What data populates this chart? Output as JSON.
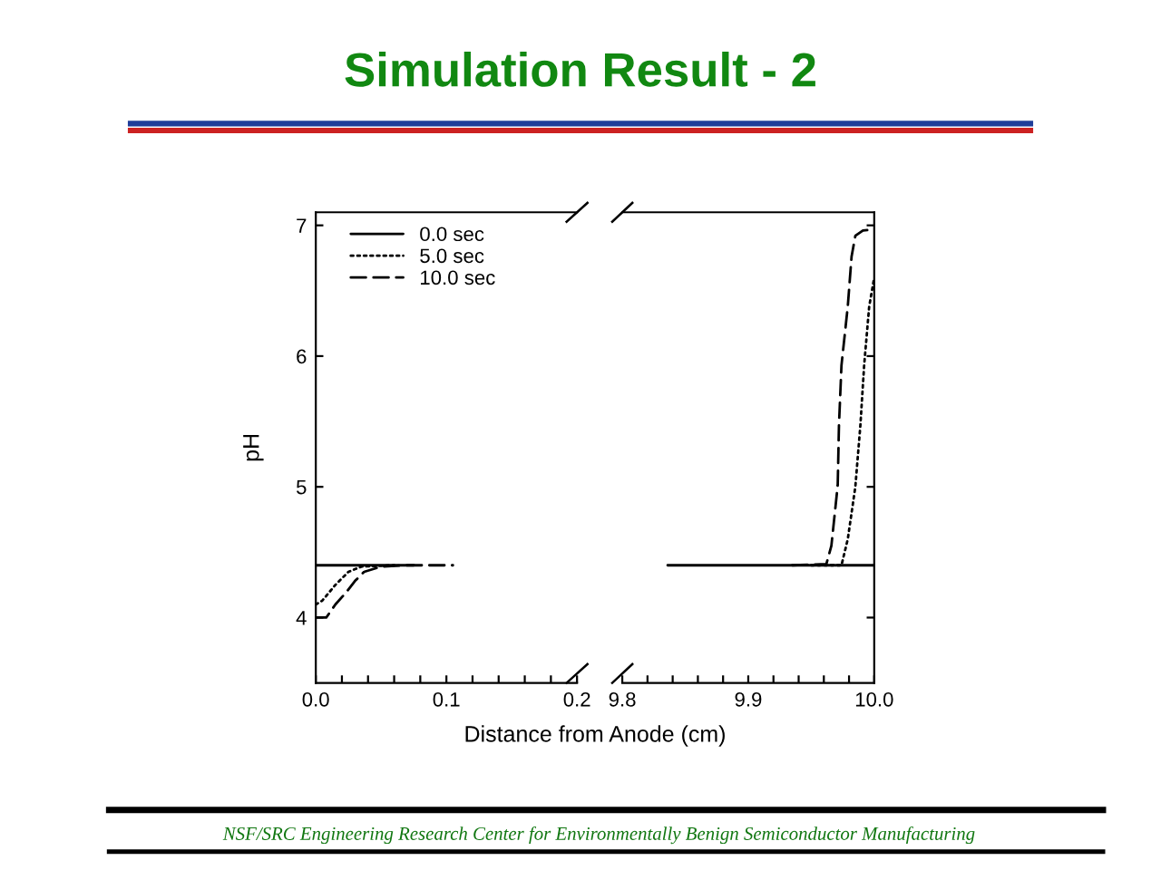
{
  "chart_data": [
    {
      "type": "line",
      "title": "Simulation Result - 2",
      "xlabel": "Distance from Anode (cm)",
      "ylabel": "pH",
      "xlim": [
        0,
        0.2
      ],
      "ylim": [
        3.5,
        7.1
      ],
      "xticks": [
        {
          "value": 0,
          "label": "0.0"
        },
        {
          "value": 0.02,
          "label": null
        },
        {
          "value": 0.04,
          "label": null
        },
        {
          "value": 0.06,
          "label": null
        },
        {
          "value": 0.08,
          "label": null
        },
        0.1,
        {
          "value": 0.12,
          "label": null
        },
        {
          "value": 0.14,
          "label": null
        },
        {
          "value": 0.16,
          "label": null
        },
        {
          "value": 0.18,
          "label": null
        },
        0.2
      ],
      "yticks": [
        4,
        5,
        6,
        7
      ],
      "legend": "top left",
      "annotations": [
        "NSF/SRC Engineering Research Center for Environmentally Benign Semiconductor Manufacturing"
      ],
      "series": [
        {
          "name": "0.0 sec",
          "color": "#000000",
          "line_style": "solid",
          "x": [
            0,
            0.075
          ],
          "values": [
            4.4,
            4.4
          ]
        },
        {
          "name": "5.0 sec",
          "color": "#000000",
          "line_style": "dotted",
          "x": [
            0,
            0.005,
            0.015,
            0.025,
            0.035,
            0.06
          ],
          "values": [
            4.1,
            4.13,
            4.25,
            4.35,
            4.39,
            4.4
          ]
        },
        {
          "name": "10.0 sec",
          "color": "#000000",
          "line_style": "dashed",
          "x": [
            0,
            0.008,
            0.015,
            0.023,
            0.03,
            0.037,
            0.05,
            0.07,
            0.105
          ],
          "values": [
            4.0,
            4.0,
            4.1,
            4.19,
            4.28,
            4.35,
            4.39,
            4.4,
            4.4
          ]
        }
      ]
    },
    {
      "type": "line",
      "xlim": [
        9.8,
        10.0
      ],
      "ylim": [
        3.5,
        7.1
      ],
      "tick_labels": "x",
      "xticks": [
        9.8,
        {
          "value": 9.82,
          "label": null
        },
        {
          "value": 9.84,
          "label": null
        },
        {
          "value": 9.86,
          "label": null
        },
        {
          "value": 9.88,
          "label": null
        },
        9.9,
        {
          "value": 9.92,
          "label": null
        },
        {
          "value": 9.94,
          "label": null
        },
        {
          "value": 9.96,
          "label": null
        },
        {
          "value": 9.98,
          "label": null
        },
        {
          "value": 10,
          "label": "10.0"
        }
      ],
      "yticks": [
        4,
        5,
        6,
        7
      ],
      "series": [
        {
          "color": "#000000",
          "line_style": "solid",
          "x": [
            9.836,
            10.0
          ],
          "values": [
            4.4,
            4.4
          ]
        },
        {
          "color": "#000000",
          "line_style": "dotted",
          "x": [
            9.95,
            9.974,
            9.979,
            9.985,
            9.989,
            9.992,
            9.996,
            10.0
          ],
          "values": [
            4.4,
            4.4,
            4.6,
            5.0,
            5.47,
            5.93,
            6.38,
            6.6
          ]
        },
        {
          "color": "#000000",
          "line_style": "dashed",
          "x": [
            9.935,
            9.962,
            9.966,
            9.971,
            9.972,
            9.974,
            9.979,
            9.982,
            9.985,
            9.991,
            10.0
          ],
          "values": [
            4.4,
            4.41,
            4.55,
            5.01,
            5.47,
            5.93,
            6.38,
            6.76,
            6.92,
            6.96,
            6.97
          ]
        }
      ]
    }
  ]
}
